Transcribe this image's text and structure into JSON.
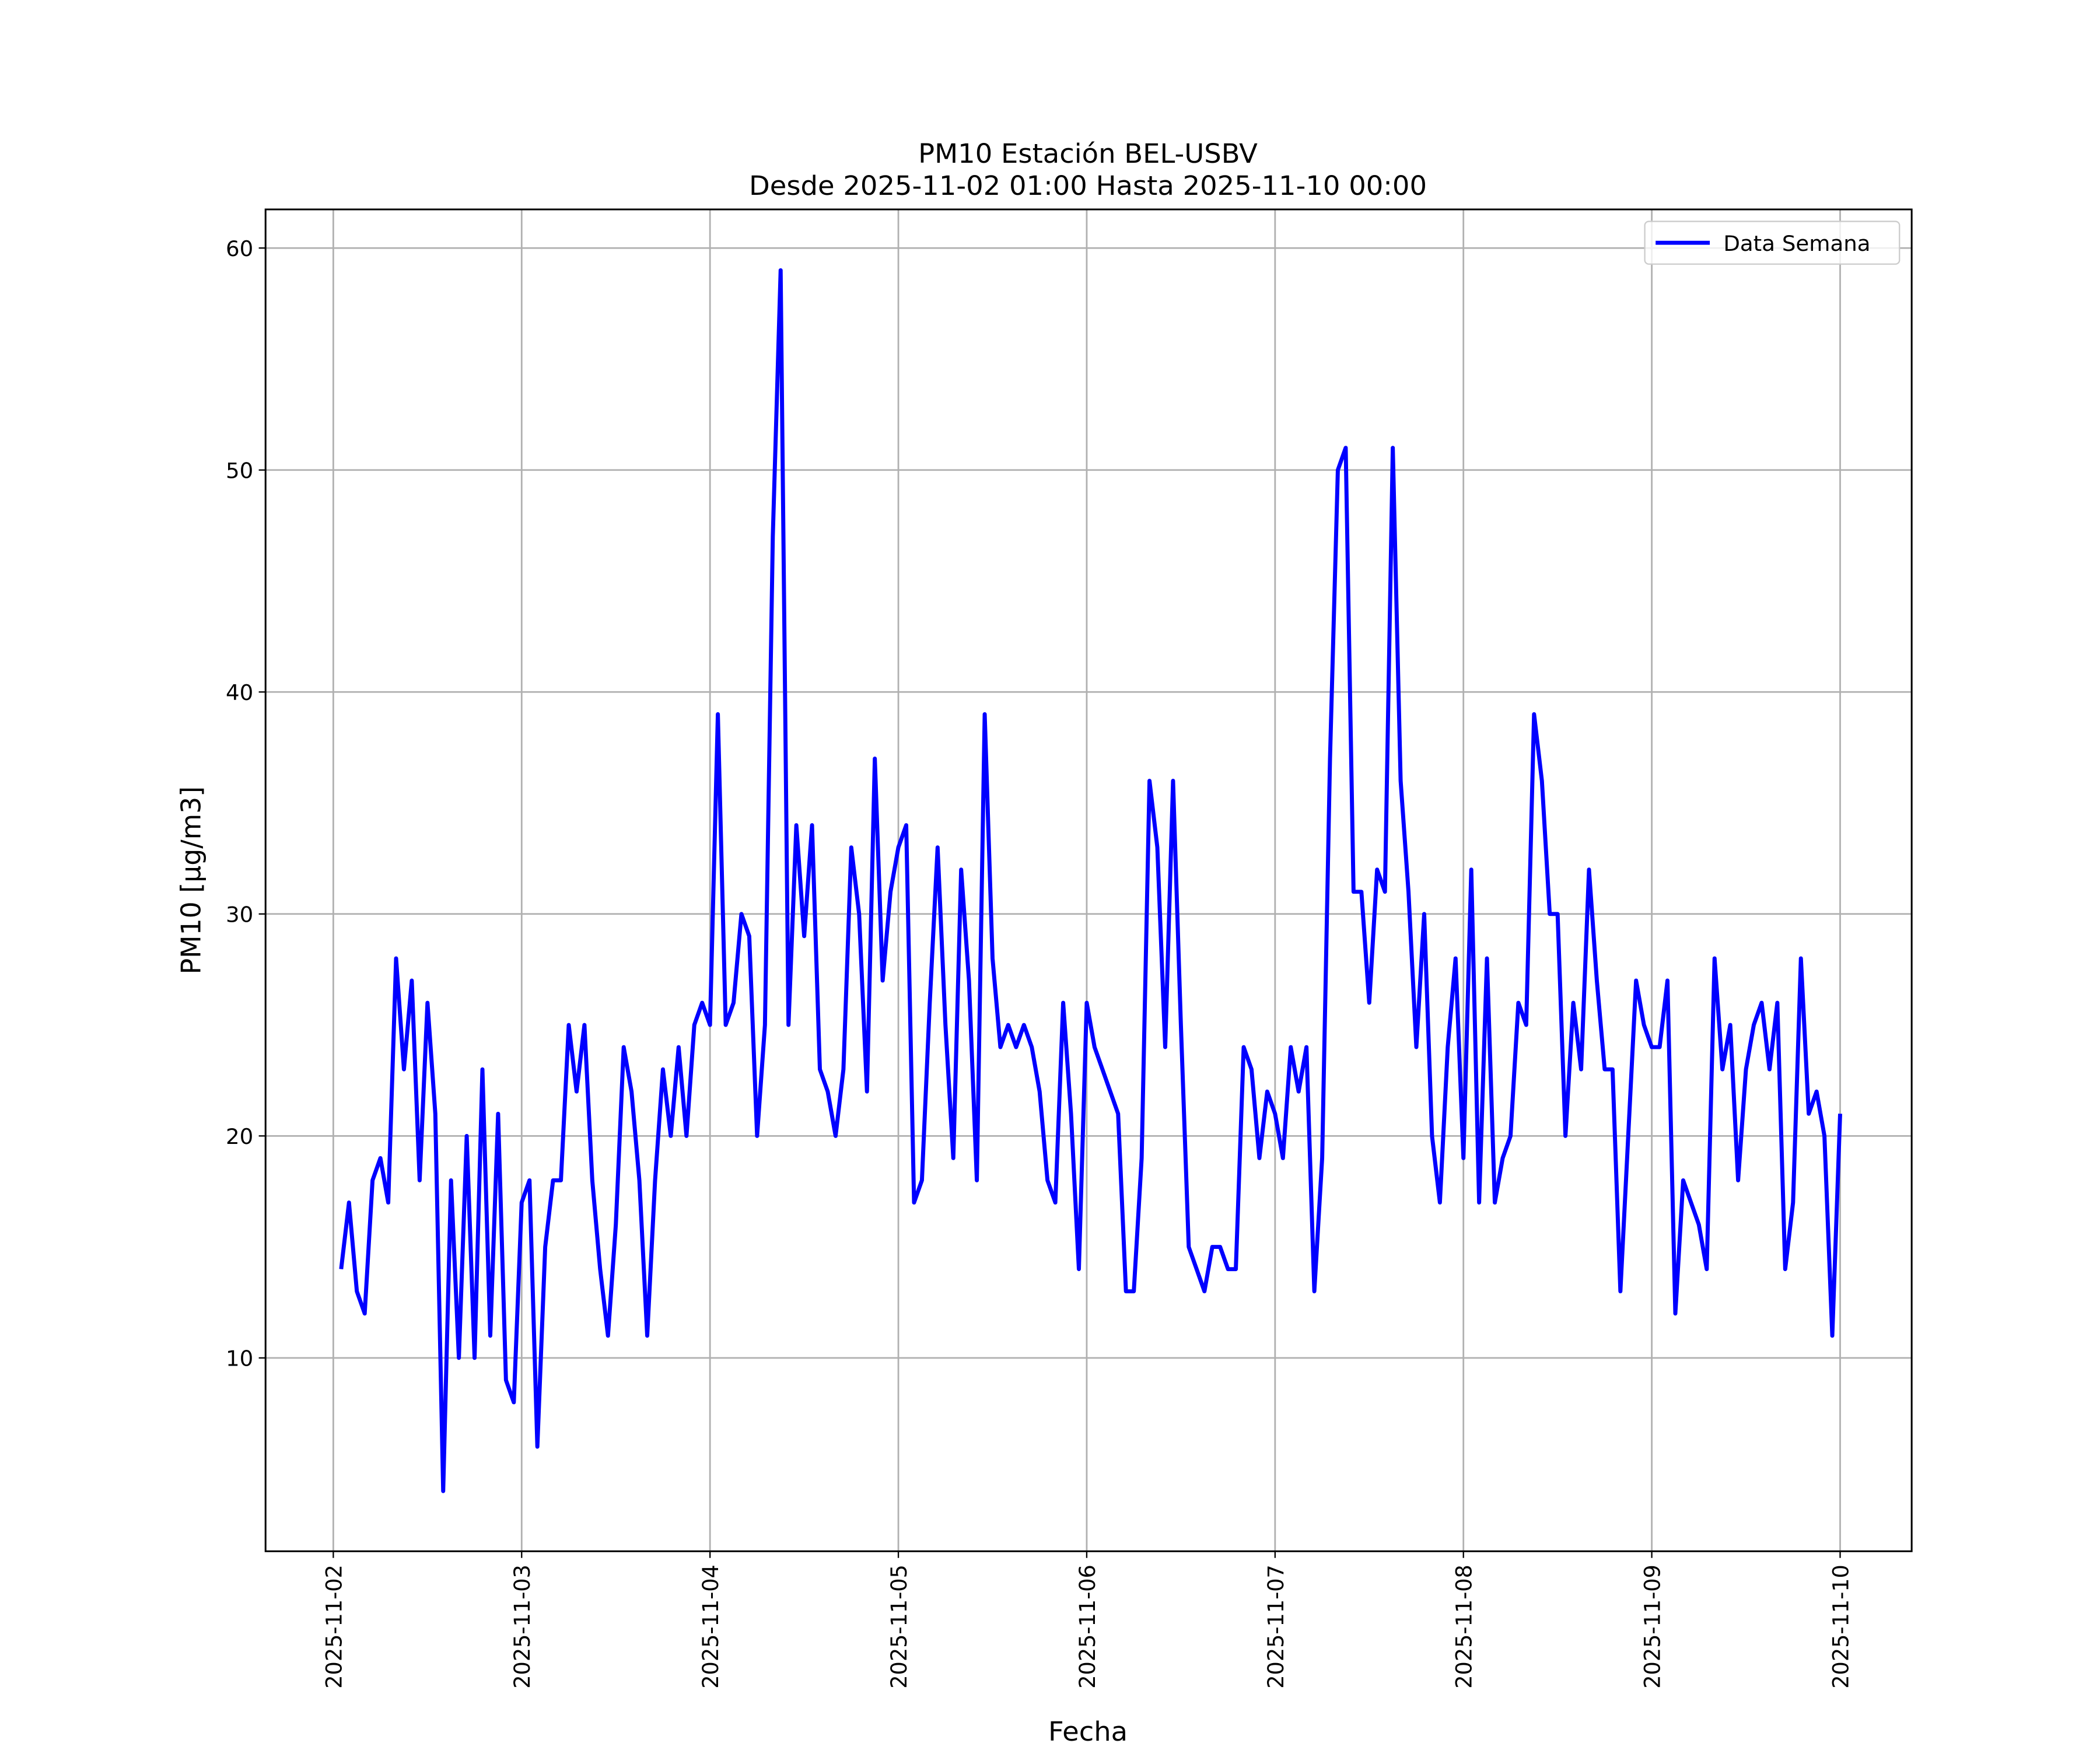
{
  "chart_data": {
    "type": "line",
    "title": "PM10 Estación BEL-USBV",
    "subtitle": "Desde 2025-11-02 01:00 Hasta 2025-11-10 00:00",
    "x_label": "Fecha",
    "y_label": "PM10 [μg/m3]",
    "x": [
      "2025-11-02 01:00",
      "2025-11-02 02:00",
      "2025-11-02 03:00",
      "2025-11-02 04:00",
      "2025-11-02 05:00",
      "2025-11-02 06:00",
      "2025-11-02 07:00",
      "2025-11-02 08:00",
      "2025-11-02 09:00",
      "2025-11-02 10:00",
      "2025-11-02 11:00",
      "2025-11-02 12:00",
      "2025-11-02 13:00",
      "2025-11-02 14:00",
      "2025-11-02 15:00",
      "2025-11-02 16:00",
      "2025-11-02 17:00",
      "2025-11-02 18:00",
      "2025-11-02 19:00",
      "2025-11-02 20:00",
      "2025-11-02 21:00",
      "2025-11-02 22:00",
      "2025-11-02 23:00",
      "2025-11-03 00:00",
      "2025-11-03 01:00",
      "2025-11-03 02:00",
      "2025-11-03 03:00",
      "2025-11-03 04:00",
      "2025-11-03 05:00",
      "2025-11-03 06:00",
      "2025-11-03 07:00",
      "2025-11-03 08:00",
      "2025-11-03 09:00",
      "2025-11-03 10:00",
      "2025-11-03 11:00",
      "2025-11-03 12:00",
      "2025-11-03 13:00",
      "2025-11-03 14:00",
      "2025-11-03 15:00",
      "2025-11-03 16:00",
      "2025-11-03 17:00",
      "2025-11-03 18:00",
      "2025-11-03 19:00",
      "2025-11-03 20:00",
      "2025-11-03 21:00",
      "2025-11-03 22:00",
      "2025-11-03 23:00",
      "2025-11-04 00:00",
      "2025-11-04 01:00",
      "2025-11-04 02:00",
      "2025-11-04 03:00",
      "2025-11-04 04:00",
      "2025-11-04 05:00",
      "2025-11-04 06:00",
      "2025-11-04 07:00",
      "2025-11-04 08:00",
      "2025-11-04 09:00",
      "2025-11-04 10:00",
      "2025-11-04 11:00",
      "2025-11-04 12:00",
      "2025-11-04 13:00",
      "2025-11-04 14:00",
      "2025-11-04 15:00",
      "2025-11-04 16:00",
      "2025-11-04 17:00",
      "2025-11-04 18:00",
      "2025-11-04 19:00",
      "2025-11-04 20:00",
      "2025-11-04 21:00",
      "2025-11-04 22:00",
      "2025-11-04 23:00",
      "2025-11-05 00:00",
      "2025-11-05 01:00",
      "2025-11-05 02:00",
      "2025-11-05 03:00",
      "2025-11-05 04:00",
      "2025-11-05 05:00",
      "2025-11-05 06:00",
      "2025-11-05 07:00",
      "2025-11-05 08:00",
      "2025-11-05 09:00",
      "2025-11-05 10:00",
      "2025-11-05 11:00",
      "2025-11-05 12:00",
      "2025-11-05 13:00",
      "2025-11-05 14:00",
      "2025-11-05 15:00",
      "2025-11-05 16:00",
      "2025-11-05 17:00",
      "2025-11-05 18:00",
      "2025-11-05 19:00",
      "2025-11-05 20:00",
      "2025-11-05 21:00",
      "2025-11-05 22:00",
      "2025-11-05 23:00",
      "2025-11-06 00:00",
      "2025-11-06 01:00",
      "2025-11-06 02:00",
      "2025-11-06 03:00",
      "2025-11-06 04:00",
      "2025-11-06 05:00",
      "2025-11-06 06:00",
      "2025-11-06 07:00",
      "2025-11-06 08:00",
      "2025-11-06 09:00",
      "2025-11-06 10:00",
      "2025-11-06 11:00",
      "2025-11-06 12:00",
      "2025-11-06 13:00",
      "2025-11-06 14:00",
      "2025-11-06 15:00",
      "2025-11-06 16:00",
      "2025-11-06 17:00",
      "2025-11-06 18:00",
      "2025-11-06 19:00",
      "2025-11-06 20:00",
      "2025-11-06 21:00",
      "2025-11-06 22:00",
      "2025-11-06 23:00",
      "2025-11-07 00:00",
      "2025-11-07 01:00",
      "2025-11-07 02:00",
      "2025-11-07 03:00",
      "2025-11-07 04:00",
      "2025-11-07 05:00",
      "2025-11-07 06:00",
      "2025-11-07 07:00",
      "2025-11-07 08:00",
      "2025-11-07 09:00",
      "2025-11-07 10:00",
      "2025-11-07 11:00",
      "2025-11-07 12:00",
      "2025-11-07 13:00",
      "2025-11-07 14:00",
      "2025-11-07 15:00",
      "2025-11-07 16:00",
      "2025-11-07 17:00",
      "2025-11-07 18:00",
      "2025-11-07 19:00",
      "2025-11-07 20:00",
      "2025-11-07 21:00",
      "2025-11-07 22:00",
      "2025-11-07 23:00",
      "2025-11-08 00:00",
      "2025-11-08 01:00",
      "2025-11-08 02:00",
      "2025-11-08 03:00",
      "2025-11-08 04:00",
      "2025-11-08 05:00",
      "2025-11-08 06:00",
      "2025-11-08 07:00",
      "2025-11-08 08:00",
      "2025-11-08 09:00",
      "2025-11-08 10:00",
      "2025-11-08 11:00",
      "2025-11-08 12:00",
      "2025-11-08 13:00",
      "2025-11-08 14:00",
      "2025-11-08 15:00",
      "2025-11-08 16:00",
      "2025-11-08 17:00",
      "2025-11-08 18:00",
      "2025-11-08 19:00",
      "2025-11-08 20:00",
      "2025-11-08 21:00",
      "2025-11-08 22:00",
      "2025-11-08 23:00",
      "2025-11-09 00:00",
      "2025-11-09 01:00",
      "2025-11-09 02:00",
      "2025-11-09 03:00",
      "2025-11-09 04:00",
      "2025-11-09 05:00",
      "2025-11-09 06:00",
      "2025-11-09 07:00",
      "2025-11-09 08:00",
      "2025-11-09 09:00",
      "2025-11-09 10:00",
      "2025-11-09 11:00",
      "2025-11-09 12:00",
      "2025-11-09 13:00",
      "2025-11-09 14:00",
      "2025-11-09 15:00",
      "2025-11-09 16:00",
      "2025-11-09 17:00",
      "2025-11-09 18:00",
      "2025-11-09 19:00",
      "2025-11-09 20:00",
      "2025-11-09 21:00",
      "2025-11-09 22:00",
      "2025-11-09 23:00",
      "2025-11-10 00:00"
    ],
    "series": [
      {
        "name": "Data Semana",
        "color": "#0000ff",
        "values": [
          14,
          17,
          13,
          12,
          18,
          19,
          17,
          28,
          23,
          27,
          18,
          26,
          21,
          4,
          18,
          10,
          20,
          10,
          23,
          11,
          21,
          9,
          8,
          17,
          18,
          6,
          15,
          18,
          18,
          25,
          22,
          25,
          18,
          14,
          11,
          16,
          24,
          22,
          18,
          11,
          18,
          23,
          20,
          24,
          20,
          25,
          26,
          25,
          39,
          25,
          26,
          30,
          29,
          20,
          25,
          47,
          59,
          25,
          34,
          29,
          34,
          23,
          22,
          20,
          23,
          33,
          30,
          22,
          37,
          27,
          31,
          33,
          34,
          17,
          18,
          26,
          33,
          25,
          19,
          32,
          27,
          18,
          39,
          28,
          24,
          25,
          24,
          25,
          24,
          22,
          18,
          17,
          26,
          21,
          14,
          26,
          24,
          23,
          22,
          21,
          13,
          13,
          19,
          36,
          33,
          24,
          36,
          25,
          15,
          14,
          13,
          15,
          15,
          14,
          14,
          24,
          23,
          19,
          22,
          21,
          19,
          24,
          22,
          24,
          13,
          19,
          37,
          50,
          51,
          31,
          31,
          26,
          32,
          31,
          51,
          36,
          31,
          24,
          30,
          20,
          17,
          24,
          28,
          19,
          32,
          17,
          28,
          17,
          19,
          20,
          26,
          25,
          39,
          36,
          30,
          30,
          20,
          26,
          23,
          32,
          27,
          23,
          23,
          13,
          20,
          27,
          25,
          24,
          24,
          27,
          12,
          18,
          17,
          16,
          14,
          28,
          23,
          25,
          18,
          23,
          25,
          26,
          23,
          26,
          14,
          17,
          28,
          21,
          22,
          20,
          11,
          21
        ]
      }
    ],
    "xlim": [
      "2025-11-01 15:22",
      "2025-11-10 09:07"
    ],
    "xticks": [
      "2025-11-02",
      "2025-11-03",
      "2025-11-04",
      "2025-11-05",
      "2025-11-06",
      "2025-11-07",
      "2025-11-08",
      "2025-11-09",
      "2025-11-10"
    ],
    "ylim": [
      1.29,
      61.74
    ],
    "yticks": [
      10,
      20,
      30,
      40,
      50,
      60
    ],
    "grid": true,
    "legend": "upper right"
  }
}
